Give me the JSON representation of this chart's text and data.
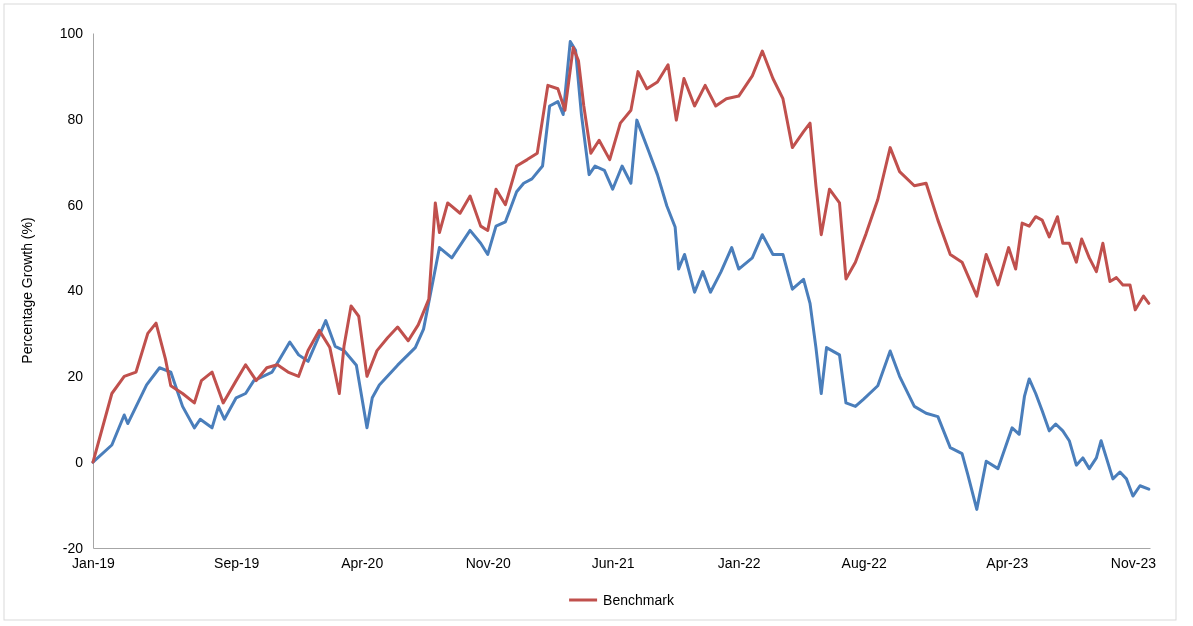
{
  "chart_data": {
    "type": "line",
    "ylabel": "Percentage Growth (%)",
    "xlim": [
      "2019-01-01",
      "2023-11-30"
    ],
    "xticks": [
      {
        "value": "2019-01-01",
        "label": "Jan-19"
      },
      {
        "value": "2019-09-01",
        "label": "Sep-19"
      },
      {
        "value": "2020-04-01",
        "label": "Apr-20"
      },
      {
        "value": "2020-11-01",
        "label": "Nov-20"
      },
      {
        "value": "2021-06-01",
        "label": "Jun-21"
      },
      {
        "value": "2022-01-01",
        "label": "Jan-22"
      },
      {
        "value": "2022-08-01",
        "label": "Aug-22"
      },
      {
        "value": "2023-04-01",
        "label": "Apr-23"
      },
      {
        "value": "2023-11-01",
        "label": "Nov-23"
      }
    ],
    "ylim": [
      -20,
      100
    ],
    "yticks": [
      -20,
      0,
      20,
      40,
      60,
      80,
      100
    ],
    "grid": false,
    "legend": "bottom",
    "line_style": "solid",
    "marker": "none",
    "series": [
      {
        "color": "#4a7ebb",
        "x": [
          "2019-01-01",
          "2019-02-02",
          "2019-02-23",
          "2019-03-01",
          "2019-04-02",
          "2019-04-24",
          "2019-05-13",
          "2019-06-02",
          "2019-06-22",
          "2019-07-02",
          "2019-07-22",
          "2019-08-02",
          "2019-08-12",
          "2019-09-01",
          "2019-09-17",
          "2019-10-01",
          "2019-11-01",
          "2019-12-01",
          "2019-12-16",
          "2020-01-01",
          "2020-01-31",
          "2020-02-16",
          "2020-03-02",
          "2020-03-23",
          "2020-04-10",
          "2020-04-19",
          "2020-05-01",
          "2020-06-01",
          "2020-07-01",
          "2020-07-15",
          "2020-08-02",
          "2020-08-11",
          "2020-09-01",
          "2020-10-02",
          "2020-10-20",
          "2020-11-01",
          "2020-11-15",
          "2020-12-01",
          "2020-12-20",
          "2021-01-01",
          "2021-01-15",
          "2021-02-02",
          "2021-02-14",
          "2021-02-28",
          "2021-03-09",
          "2021-03-21",
          "2021-03-30",
          "2021-04-09",
          "2021-04-22",
          "2021-05-02",
          "2021-05-18",
          "2021-06-01",
          "2021-06-17",
          "2021-07-02",
          "2021-07-12",
          "2021-08-01",
          "2021-08-16",
          "2021-09-01",
          "2021-09-15",
          "2021-09-21",
          "2021-10-01",
          "2021-10-18",
          "2021-11-01",
          "2021-11-14",
          "2021-12-02",
          "2021-12-20",
          "2022-01-01",
          "2022-01-24",
          "2022-02-10",
          "2022-02-28",
          "2022-03-17",
          "2022-04-02",
          "2022-04-21",
          "2022-05-02",
          "2022-05-12",
          "2022-05-21",
          "2022-05-30",
          "2022-06-21",
          "2022-07-02",
          "2022-07-18",
          "2022-08-01",
          "2022-08-25",
          "2022-09-15",
          "2022-10-01",
          "2022-10-26",
          "2022-11-15",
          "2022-12-05",
          "2022-12-26",
          "2023-01-15",
          "2023-01-25",
          "2023-02-09",
          "2023-02-25",
          "2023-03-17",
          "2023-04-10",
          "2023-04-22",
          "2023-05-01",
          "2023-05-09",
          "2023-05-20",
          "2023-05-31",
          "2023-06-12",
          "2023-06-23",
          "2023-07-05",
          "2023-07-16",
          "2023-07-28",
          "2023-08-08",
          "2023-08-19",
          "2023-08-31",
          "2023-09-08",
          "2023-09-17",
          "2023-09-28",
          "2023-10-10",
          "2023-10-21",
          "2023-11-01",
          "2023-11-13",
          "2023-11-28"
        ],
        "values": [
          0,
          4,
          11,
          9,
          18,
          22,
          21,
          13,
          8,
          10,
          8,
          13,
          10,
          15,
          16,
          19,
          21,
          28,
          25,
          23.5,
          33,
          27,
          26,
          22.6,
          8,
          15,
          18,
          22.6,
          26.7,
          31,
          43.6,
          50,
          47.6,
          54,
          51,
          48.4,
          55,
          56,
          63,
          65,
          66,
          69,
          83,
          84,
          81,
          98,
          96,
          81,
          67,
          69,
          68,
          63.6,
          69,
          65,
          79.7,
          72.5,
          67,
          59.7,
          54.8,
          45,
          48.4,
          39.6,
          44.4,
          39.6,
          44.4,
          50,
          45,
          47.6,
          53,
          48.4,
          48.4,
          40.3,
          42.6,
          37,
          26.7,
          16,
          26.7,
          25,
          13.8,
          13,
          14.7,
          17.8,
          25.9,
          20,
          13,
          11.4,
          10.6,
          3.4,
          2,
          -3,
          -11,
          0.2,
          -1.5,
          8,
          6.5,
          15.4,
          19.4,
          16,
          12,
          7.3,
          8.9,
          7.3,
          5,
          -0.7,
          1,
          -1.5,
          1,
          5,
          1,
          -3.9,
          -2.3,
          -3.9,
          -7.9,
          -5.5,
          -6.3
        ]
      },
      {
        "name": "Benchmark",
        "color": "#c0504d",
        "x": [
          "2019-01-01",
          "2019-02-02",
          "2019-02-23",
          "2019-03-15",
          "2019-04-04",
          "2019-04-18",
          "2019-05-04",
          "2019-05-13",
          "2019-06-02",
          "2019-06-22",
          "2019-07-04",
          "2019-07-22",
          "2019-08-10",
          "2019-09-01",
          "2019-09-17",
          "2019-10-05",
          "2019-10-23",
          "2019-11-10",
          "2019-11-28",
          "2019-12-16",
          "2020-01-01",
          "2020-01-20",
          "2020-02-07",
          "2020-02-23",
          "2020-03-02",
          "2020-03-14",
          "2020-03-27",
          "2020-04-10",
          "2020-04-27",
          "2020-05-15",
          "2020-06-01",
          "2020-06-19",
          "2020-07-06",
          "2020-07-24",
          "2020-08-04",
          "2020-08-11",
          "2020-08-25",
          "2020-09-15",
          "2020-10-02",
          "2020-10-20",
          "2020-11-01",
          "2020-11-15",
          "2020-12-01",
          "2020-12-20",
          "2021-01-07",
          "2021-01-24",
          "2021-02-11",
          "2021-02-28",
          "2021-03-12",
          "2021-03-26",
          "2021-04-04",
          "2021-04-13",
          "2021-04-25",
          "2021-05-09",
          "2021-05-27",
          "2021-06-14",
          "2021-07-02",
          "2021-07-14",
          "2021-07-29",
          "2021-08-16",
          "2021-09-03",
          "2021-09-17",
          "2021-09-30",
          "2021-10-18",
          "2021-11-05",
          "2021-11-23",
          "2021-12-11",
          "2022-01-01",
          "2022-01-24",
          "2022-02-10",
          "2022-02-28",
          "2022-03-17",
          "2022-04-02",
          "2022-04-21",
          "2022-05-02",
          "2022-05-12",
          "2022-05-21",
          "2022-06-04",
          "2022-06-21",
          "2022-07-02",
          "2022-07-18",
          "2022-08-05",
          "2022-08-25",
          "2022-09-15",
          "2022-10-01",
          "2022-10-26",
          "2022-11-15",
          "2022-12-05",
          "2022-12-26",
          "2023-01-15",
          "2023-02-09",
          "2023-02-25",
          "2023-03-17",
          "2023-04-04",
          "2023-04-16",
          "2023-04-27",
          "2023-05-09",
          "2023-05-20",
          "2023-05-31",
          "2023-06-12",
          "2023-06-26",
          "2023-07-05",
          "2023-07-16",
          "2023-07-28",
          "2023-08-06",
          "2023-08-19",
          "2023-08-31",
          "2023-09-11",
          "2023-09-23",
          "2023-10-04",
          "2023-10-15",
          "2023-10-27",
          "2023-11-05",
          "2023-11-19",
          "2023-11-28"
        ],
        "values": [
          0,
          16,
          20,
          21,
          30,
          32.4,
          24,
          17.8,
          16,
          13.8,
          19,
          21,
          13.8,
          19,
          22.7,
          19,
          22,
          22.7,
          21,
          20,
          26,
          30.7,
          26.7,
          16,
          27,
          36.4,
          34,
          20,
          26,
          29,
          31.5,
          28.3,
          32,
          38,
          60.4,
          53.5,
          60.4,
          58,
          62,
          55,
          54,
          63.6,
          60,
          69,
          70.5,
          72,
          87.8,
          87,
          82,
          96.6,
          93.5,
          83,
          72,
          75,
          70.5,
          79,
          82,
          91,
          87,
          88.6,
          92.6,
          79.7,
          89.4,
          83,
          87.8,
          83,
          84.7,
          85.3,
          90,
          95.8,
          89.4,
          84.7,
          73.3,
          77,
          79,
          64.4,
          53,
          63.6,
          60.4,
          42.7,
          46.6,
          53.2,
          61.2,
          73.3,
          67.7,
          64.4,
          65,
          56.4,
          48.4,
          46.6,
          38.7,
          48.4,
          41.3,
          50,
          45,
          55.7,
          55,
          57.2,
          56.4,
          52.5,
          57.2,
          51,
          51,
          46.6,
          52,
          47.6,
          44.4,
          51,
          42.1,
          43,
          41.3,
          41.3,
          35.5,
          38.7,
          37
        ]
      }
    ]
  }
}
